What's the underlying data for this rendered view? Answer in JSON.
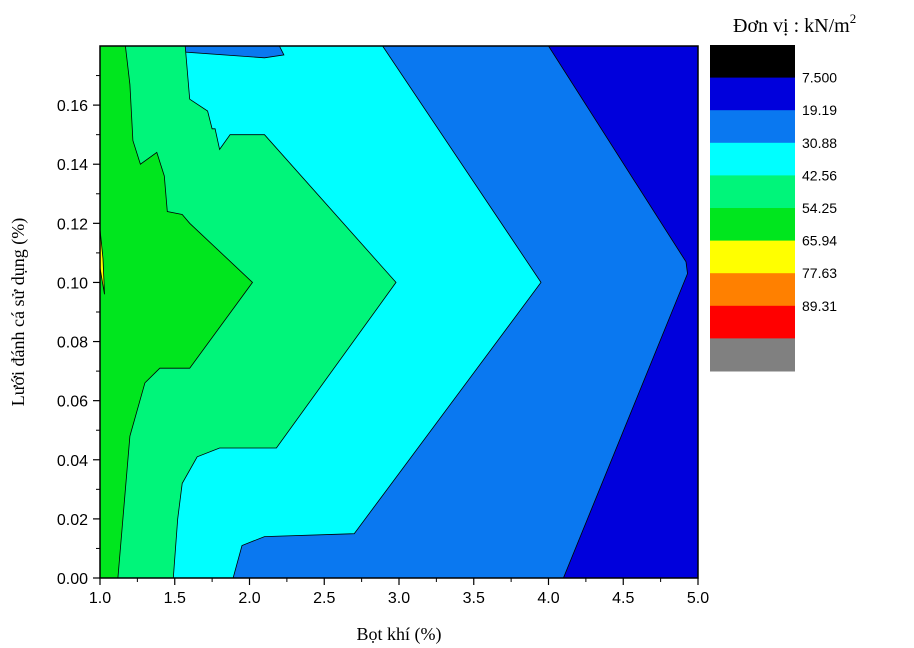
{
  "chart_data": {
    "type": "contour",
    "xlabel": "Bọt khí (%)",
    "ylabel": "Lưới đánh cá sử dụng (%)",
    "xlim": [
      1.0,
      5.0
    ],
    "ylim": [
      0.0,
      0.18
    ],
    "x_ticks": [
      "1.0",
      "1.5",
      "2.0",
      "2.5",
      "3.0",
      "3.5",
      "4.0",
      "4.5",
      "5.0"
    ],
    "y_ticks": [
      "0.00",
      "0.02",
      "0.04",
      "0.06",
      "0.08",
      "0.10",
      "0.12",
      "0.14",
      "0.16"
    ],
    "unit_prefix": "Đơn vị : kN/m",
    "unit_exponent": "2",
    "legend": {
      "position": "right",
      "levels": [
        {
          "color": "#000000",
          "label": ""
        },
        {
          "color": "#0000dc",
          "label": "7.500"
        },
        {
          "color": "#0a78f0",
          "label": "19.19"
        },
        {
          "color": "#00ffff",
          "label": "30.88"
        },
        {
          "color": "#00f57a",
          "label": "42.56"
        },
        {
          "color": "#00e61e",
          "label": "54.25"
        },
        {
          "color": "#ffff00",
          "label": "65.94"
        },
        {
          "color": "#ff8000",
          "label": "77.63"
        },
        {
          "color": "#ff0000",
          "label": "89.31"
        },
        {
          "color": "#808080",
          "label": ""
        }
      ]
    },
    "regions": [
      {
        "level": 1,
        "points": [
          [
            1.0,
            0.0
          ],
          [
            5.0,
            0.0
          ],
          [
            5.0,
            0.18
          ],
          [
            1.0,
            0.18
          ]
        ]
      },
      {
        "level": 2,
        "points": [
          [
            1.0,
            0.0
          ],
          [
            4.1,
            0.0
          ],
          [
            4.93,
            0.103
          ],
          [
            4.92,
            0.107
          ],
          [
            4.0,
            0.18
          ],
          [
            1.0,
            0.18
          ]
        ]
      },
      {
        "level": 3,
        "points": [
          [
            1.0,
            0.0
          ],
          [
            1.89,
            0.0
          ],
          [
            1.95,
            0.011
          ],
          [
            2.1,
            0.014
          ],
          [
            2.7,
            0.015
          ],
          [
            3.95,
            0.1
          ],
          [
            2.89,
            0.18
          ],
          [
            2.2,
            0.18
          ],
          [
            2.23,
            0.177
          ],
          [
            2.1,
            0.176
          ],
          [
            1.0,
            0.18
          ]
        ]
      },
      {
        "level": 4,
        "points": [
          [
            1.0,
            0.0
          ],
          [
            1.49,
            0.0
          ],
          [
            1.52,
            0.02
          ],
          [
            1.55,
            0.032
          ],
          [
            1.65,
            0.041
          ],
          [
            1.8,
            0.044
          ],
          [
            2.18,
            0.044
          ],
          [
            2.98,
            0.1
          ],
          [
            2.1,
            0.15
          ],
          [
            1.87,
            0.15
          ],
          [
            1.8,
            0.145
          ],
          [
            1.77,
            0.152
          ],
          [
            1.75,
            0.152
          ],
          [
            1.72,
            0.158
          ],
          [
            1.6,
            0.162
          ],
          [
            1.57,
            0.18
          ],
          [
            1.0,
            0.18
          ]
        ]
      },
      {
        "level": 5,
        "points": [
          [
            1.0,
            0.0
          ],
          [
            1.12,
            0.0
          ],
          [
            1.2,
            0.048
          ],
          [
            1.3,
            0.066
          ],
          [
            1.4,
            0.071
          ],
          [
            1.6,
            0.071
          ],
          [
            2.02,
            0.1
          ],
          [
            1.6,
            0.12
          ],
          [
            1.55,
            0.123
          ],
          [
            1.45,
            0.124
          ],
          [
            1.43,
            0.136
          ],
          [
            1.38,
            0.144
          ],
          [
            1.27,
            0.14
          ],
          [
            1.22,
            0.148
          ],
          [
            1.2,
            0.167
          ],
          [
            1.17,
            0.18
          ],
          [
            1.0,
            0.18
          ]
        ]
      },
      {
        "level": 6,
        "points": [
          [
            1.0,
            0.105
          ],
          [
            1.03,
            0.096
          ],
          [
            1.02,
            0.108
          ],
          [
            1.0,
            0.118
          ]
        ]
      }
    ]
  }
}
